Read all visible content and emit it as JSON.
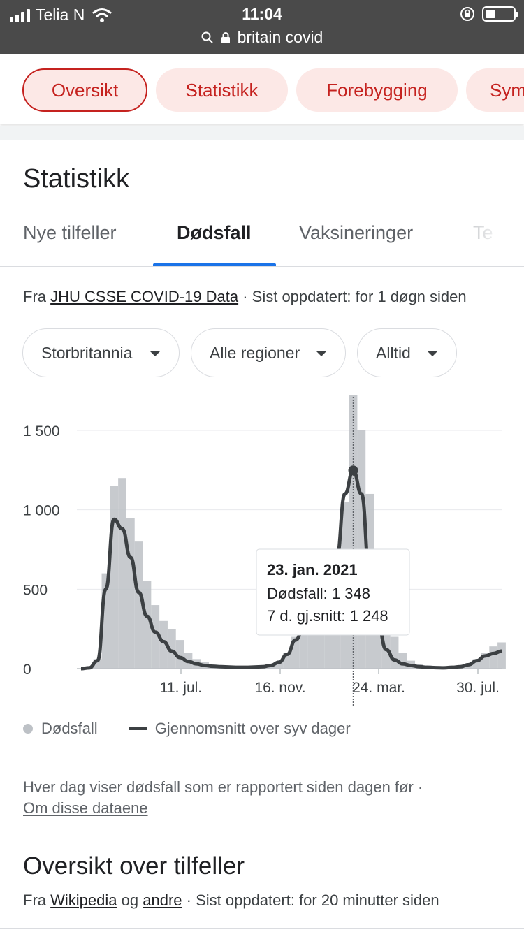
{
  "status_bar": {
    "carrier": "Telia N",
    "time": "11:04"
  },
  "browser": {
    "url": "britain covid"
  },
  "top_chips": [
    {
      "label": "Oversikt",
      "active": true
    },
    {
      "label": "Statistikk",
      "active": false
    },
    {
      "label": "Forebygging",
      "active": false
    },
    {
      "label": "Sym",
      "active": false
    }
  ],
  "page_title": "Statistikk",
  "tabs": [
    {
      "label": "Nye tilfeller",
      "active": false
    },
    {
      "label": "Dødsfall",
      "active": true
    },
    {
      "label": "Vaksineringer",
      "active": false
    },
    {
      "label": "Te",
      "active": false
    }
  ],
  "source": {
    "prefix": "Fra",
    "link": "JHU CSSE COVID-19 Data",
    "suffix": "· Sist oppdatert: for 1 døgn siden"
  },
  "filters": [
    {
      "label": "Storbritannia"
    },
    {
      "label": "Alle regioner"
    },
    {
      "label": "Alltid"
    }
  ],
  "chart_data": {
    "type": "bar",
    "title": "",
    "xlabel": "",
    "ylabel": "",
    "ylim": [
      0,
      1700
    ],
    "yticks": [
      0,
      500,
      1000,
      1500
    ],
    "ytick_labels": [
      "0",
      "500",
      "1 000",
      "1 500"
    ],
    "xtick_labels": [
      "11. jul.",
      "16. nov.",
      "24. mar.",
      "30. jul."
    ],
    "grid": true,
    "legend_position": "bottom-left",
    "series": [
      {
        "name": "Dødsfall",
        "type": "bar",
        "color": "#bdc1c6",
        "weekly_peak_values": [
          0,
          5,
          60,
          600,
          1150,
          1200,
          950,
          800,
          550,
          400,
          300,
          250,
          180,
          100,
          60,
          40,
          20,
          15,
          12,
          10,
          12,
          10,
          15,
          20,
          40,
          100,
          200,
          300,
          420,
          500,
          600,
          750,
          1050,
          1720,
          1500,
          1100,
          600,
          350,
          200,
          100,
          50,
          30,
          20,
          15,
          12,
          15,
          20,
          30,
          60,
          100,
          140,
          165
        ]
      },
      {
        "name": "Gjennomsnitt over syv dager",
        "type": "line",
        "color": "#3c4043",
        "weekly_values": [
          0,
          5,
          50,
          500,
          940,
          880,
          700,
          480,
          330,
          230,
          170,
          110,
          70,
          45,
          30,
          20,
          15,
          12,
          10,
          8,
          8,
          10,
          12,
          20,
          40,
          90,
          180,
          250,
          330,
          400,
          480,
          700,
          1100,
          1248,
          1100,
          600,
          280,
          120,
          55,
          30,
          20,
          12,
          8,
          6,
          5,
          8,
          12,
          25,
          50,
          80,
          95,
          110
        ]
      }
    ],
    "tooltip": {
      "date": "23. jan. 2021",
      "line1": "Dødsfall: 1 348",
      "line2": "7 d. gj.snitt: 1 248",
      "index": 33
    }
  },
  "legend": {
    "bars": "Dødsfall",
    "line": "Gjennomsnitt over syv dager"
  },
  "footnote": {
    "text": "Hver dag viser dødsfall som er rapportert siden dagen før  ·",
    "link": "Om disse dataene"
  },
  "overview": {
    "title": "Oversikt over tilfeller",
    "source_prefix": "Fra",
    "link1": "Wikipedia",
    "mid": "og",
    "link2": "andre",
    "suffix": "· Sist oppdatert: for 20 minutter siden"
  }
}
